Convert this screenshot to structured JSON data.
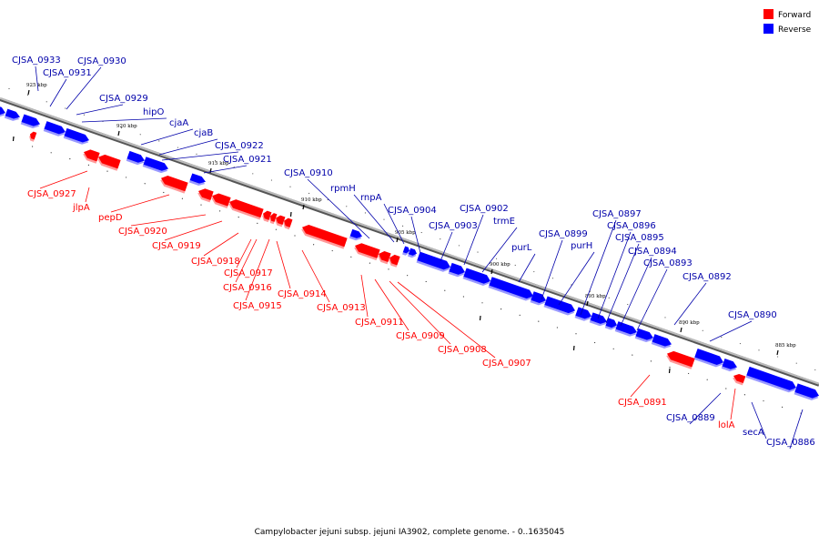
{
  "caption": "Campylobacter jejuni subsp. jejuni IA3902, complete genome. - 0..1635045",
  "legend": [
    {
      "label": "Forward",
      "color": "#ff0000"
    },
    {
      "label": "Reverse",
      "color": "#0000ff"
    }
  ],
  "colors": {
    "forward": "#ff0000",
    "reverse": "#0000ff",
    "axis": "#888888",
    "leader_forward": "#ff0000",
    "leader_reverse": "#0000aa"
  },
  "ticks": [
    "925 kbp",
    "920 kbp",
    "915 kbp",
    "910 kbp",
    "905 kbp",
    "900 kbp",
    "895 kbp",
    "890 kbp",
    "885 kbp"
  ],
  "labels": {
    "reverse": [
      "CJSA_0933",
      "CJSA_0931",
      "CJSA_0930",
      "CJSA_0929",
      "hipO",
      "cjaA",
      "cjaB",
      "CJSA_0922",
      "CJSA_0921",
      "CJSA_0910",
      "rpmH",
      "rnpA",
      "CJSA_0904",
      "CJSA_0903",
      "CJSA_0902",
      "trmE",
      "purL",
      "CJSA_0899",
      "purH",
      "CJSA_0897",
      "CJSA_0896",
      "CJSA_0895",
      "CJSA_0894",
      "CJSA_0893",
      "CJSA_0892",
      "CJSA_0890",
      "CJSA_0889",
      "secA",
      "CJSA_0886"
    ],
    "forward": [
      "CJSA_0927",
      "jlpA",
      "pepD",
      "CJSA_0920",
      "CJSA_0919",
      "CJSA_0918",
      "CJSA_0917",
      "CJSA_0916",
      "CJSA_0915",
      "CJSA_0914",
      "CJSA_0913",
      "CJSA_0911",
      "CJSA_0909",
      "CJSA_0908",
      "CJSA_0907",
      "CJSA_0891",
      "lolA"
    ]
  }
}
